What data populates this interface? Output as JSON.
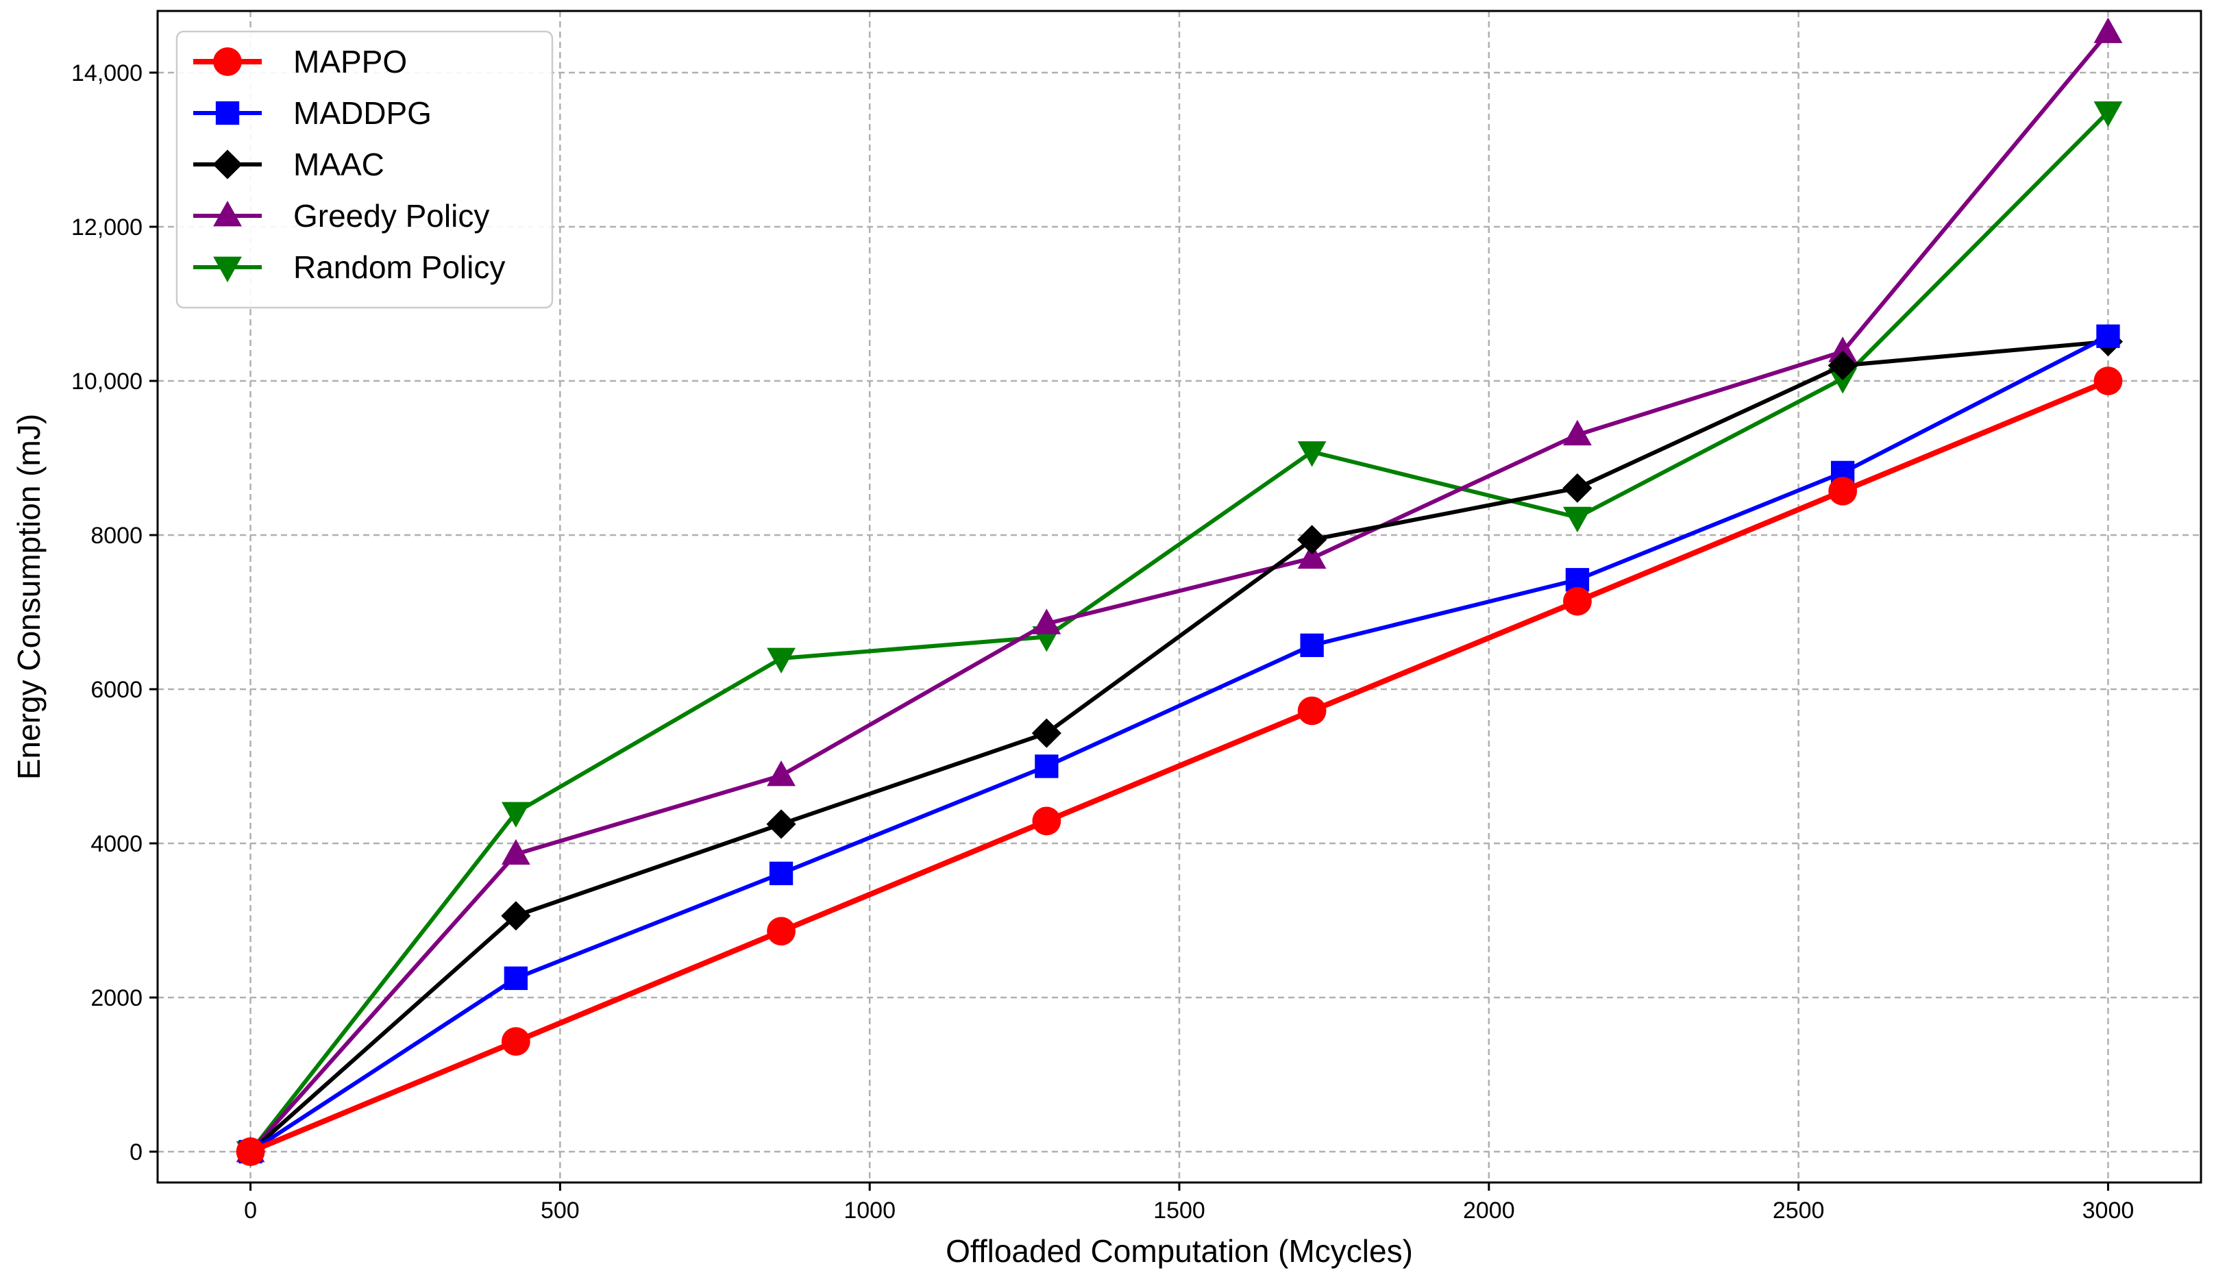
{
  "chart_data": {
    "type": "line",
    "title": "",
    "xlabel": "Offloaded Computation (Mcycles)",
    "ylabel": "Energy Consumption (mJ)",
    "xlim": [
      -150,
      3150
    ],
    "ylim": [
      -400,
      14800
    ],
    "xticks": [
      0,
      500,
      1000,
      1500,
      2000,
      2500,
      3000
    ],
    "xtick_labels": [
      "0",
      "500",
      "1000",
      "1500",
      "2000",
      "2500",
      "3000"
    ],
    "yticks": [
      0,
      2000,
      4000,
      6000,
      8000,
      10000,
      12000,
      14000
    ],
    "ytick_labels": [
      "0",
      "2000",
      "4000",
      "6000",
      "8000",
      "10,000",
      "12,000",
      "14,000"
    ],
    "grid": true,
    "legend_position": "top-left",
    "x": [
      0,
      428.6,
      857.1,
      1285.7,
      1714.3,
      2142.9,
      2571.4,
      3000
    ],
    "series": [
      {
        "name": "MAPPO",
        "color": "#ff0000",
        "marker": "circle",
        "values": [
          0,
          1430,
          2860,
          4290,
          5720,
          7140,
          8570,
          10000
        ]
      },
      {
        "name": "MADDPG",
        "color": "#0000ff",
        "marker": "square",
        "values": [
          0,
          2250,
          3610,
          5000,
          6570,
          7420,
          8810,
          10580
        ]
      },
      {
        "name": "MAAC",
        "color": "#000000",
        "marker": "diamond",
        "values": [
          0,
          3060,
          4250,
          5430,
          7940,
          8610,
          10200,
          10510
        ]
      },
      {
        "name": "Greedy Policy",
        "color": "#800080",
        "marker": "triangle-up",
        "values": [
          0,
          3860,
          4880,
          6850,
          7700,
          9300,
          10380,
          14520
        ]
      },
      {
        "name": "Random Policy",
        "color": "#008000",
        "marker": "triangle-down",
        "values": [
          0,
          4400,
          6400,
          6680,
          9080,
          8230,
          10030,
          13490
        ]
      }
    ]
  }
}
